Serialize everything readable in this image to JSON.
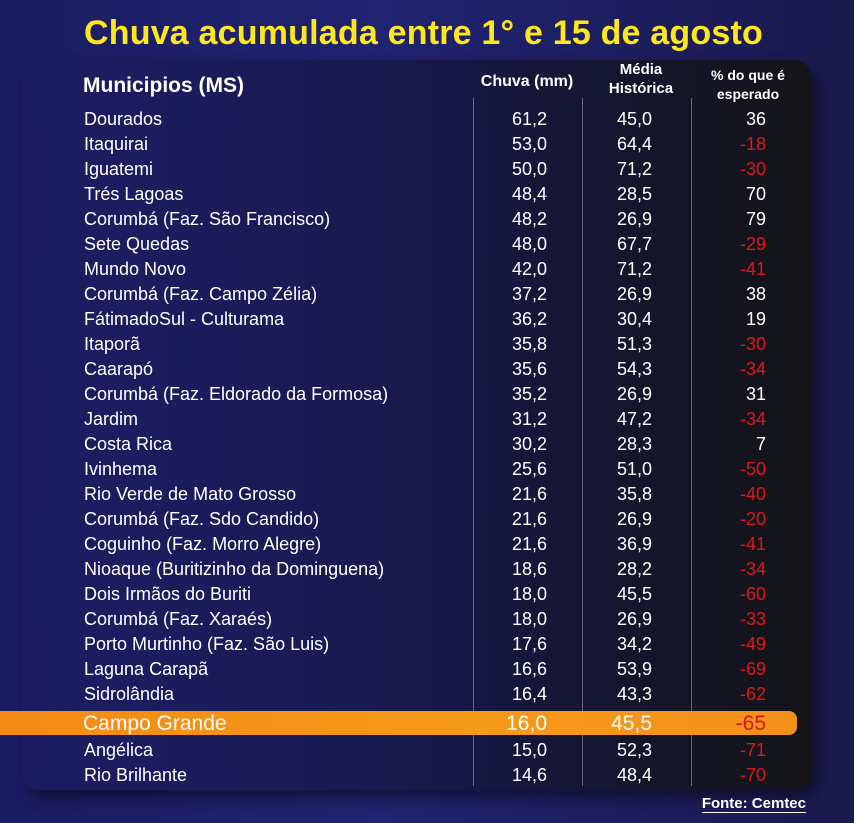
{
  "chart_data": {
    "type": "table",
    "title": "Chuva acumulada entre 1° e 15 de agosto",
    "columns": [
      "Municipios (MS)",
      "Chuva (mm)",
      "Média Histórica",
      "% do que é esperado"
    ],
    "rows": [
      {
        "name": "Dourados",
        "chuva": "61,2",
        "media": "45,0",
        "pct": "36"
      },
      {
        "name": "Itaquirai",
        "chuva": "53,0",
        "media": "64,4",
        "pct": "-18"
      },
      {
        "name": "Iguatemi",
        "chuva": "50,0",
        "media": "71,2",
        "pct": "-30"
      },
      {
        "name": "Trés Lagoas",
        "chuva": "48,4",
        "media": "28,5",
        "pct": "70"
      },
      {
        "name": "Corumbá (Faz. São Francisco)",
        "chuva": "48,2",
        "media": "26,9",
        "pct": "79"
      },
      {
        "name": "Sete Quedas",
        "chuva": "48,0",
        "media": "67,7",
        "pct": "-29"
      },
      {
        "name": "Mundo Novo",
        "chuva": "42,0",
        "media": "71,2",
        "pct": "-41"
      },
      {
        "name": "Corumbá (Faz. Campo Zélia)",
        "chuva": "37,2",
        "media": "26,9",
        "pct": "38"
      },
      {
        "name": "FátimadoSul - Culturama",
        "chuva": "36,2",
        "media": "30,4",
        "pct": "19"
      },
      {
        "name": "Itaporã",
        "chuva": "35,8",
        "media": "51,3",
        "pct": "-30"
      },
      {
        "name": "Caarapó",
        "chuva": "35,6",
        "media": "54,3",
        "pct": "-34"
      },
      {
        "name": "Corumbá (Faz. Eldorado da Formosa)",
        "chuva": "35,2",
        "media": "26,9",
        "pct": "31"
      },
      {
        "name": "Jardim",
        "chuva": "31,2",
        "media": "47,2",
        "pct": "-34"
      },
      {
        "name": "Costa Rica",
        "chuva": "30,2",
        "media": "28,3",
        "pct": "7"
      },
      {
        "name": "Ivinhema",
        "chuva": "25,6",
        "media": "51,0",
        "pct": "-50"
      },
      {
        "name": "Rio Verde de Mato Grosso",
        "chuva": "21,6",
        "media": "35,8",
        "pct": "-40"
      },
      {
        "name": "Corumbá (Faz. Sdo Candido)",
        "chuva": "21,6",
        "media": "26,9",
        "pct": "-20"
      },
      {
        "name": "Coguinho (Faz. Morro Alegre)",
        "chuva": "21,6",
        "media": "36,9",
        "pct": "-41"
      },
      {
        "name": "Nioaque (Buritizinho da Dominguena)",
        "chuva": "18,6",
        "media": "28,2",
        "pct": "-34"
      },
      {
        "name": "Dois Irmãos do Buriti",
        "chuva": "18,0",
        "media": "45,5",
        "pct": "-60"
      },
      {
        "name": "Corumbá (Faz. Xaraés)",
        "chuva": "18,0",
        "media": "26,9",
        "pct": "-33"
      },
      {
        "name": "Porto Murtinho (Faz. São Luis)",
        "chuva": "17,6",
        "media": "34,2",
        "pct": "-49"
      },
      {
        "name": "Laguna Carapã",
        "chuva": "16,6",
        "media": "53,9",
        "pct": "-69"
      },
      {
        "name": "Sidrolândia",
        "chuva": "16,4",
        "media": "43,3",
        "pct": "-62"
      },
      {
        "name": "Campo Grande",
        "chuva": "16,0",
        "media": "45,5",
        "pct": "-65",
        "highlight": true
      },
      {
        "name": "Angélica",
        "chuva": "15,0",
        "media": "52,3",
        "pct": "-71"
      },
      {
        "name": "Rio Brilhante",
        "chuva": "14,6",
        "media": "48,4",
        "pct": "-70"
      }
    ],
    "colors": {
      "title": "#ffe81a",
      "negative": "#e01818",
      "highlight": "#f6921a",
      "background": "#1f2370"
    }
  },
  "header": {
    "title": "Chuva acumulada entre 1° e 15 de agosto",
    "col_municipios": "Municipios (MS)",
    "col_chuva": "Chuva (mm)",
    "col_media_1": "Média",
    "col_media_2": "Histórica",
    "col_pct_1": "% do que é",
    "col_pct_2": "esperado"
  },
  "footer": {
    "source": "Fonte: Cemtec"
  }
}
